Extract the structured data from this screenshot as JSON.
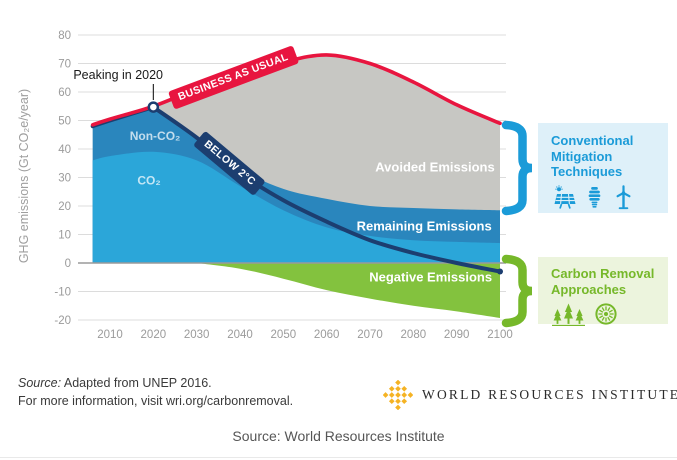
{
  "chart_data": {
    "type": "area",
    "title": "",
    "ylabel": "GHG emissions (Gt CO₂e/year)",
    "xlabel": "",
    "xlim": [
      2006,
      2100
    ],
    "ylim": [
      -20,
      80
    ],
    "x_ticks": [
      2010,
      2020,
      2030,
      2040,
      2050,
      2060,
      2070,
      2080,
      2090,
      2100
    ],
    "y_ticks": [
      80,
      70,
      60,
      50,
      40,
      30,
      20,
      10,
      0,
      -10,
      -20
    ],
    "grid": "horizontal",
    "legend_position": "right",
    "series": [
      {
        "name": "Business as Usual",
        "label": "BUSINESS AS USUAL",
        "type": "line",
        "color": "#e8153f",
        "points": [
          [
            2006,
            48.5
          ],
          [
            2010,
            50.5
          ],
          [
            2020,
            55
          ],
          [
            2030,
            61
          ],
          [
            2040,
            66
          ],
          [
            2050,
            70.5
          ],
          [
            2060,
            73
          ],
          [
            2070,
            70
          ],
          [
            2080,
            63.5
          ],
          [
            2090,
            55.5
          ],
          [
            2100,
            49
          ]
        ]
      },
      {
        "name": "Below 2°C (net emissions)",
        "label": "BELOW 2°C",
        "type": "line",
        "color": "#1c3e70",
        "segments": [
          [
            [
              2006,
              48
            ],
            [
              2010,
              50
            ],
            [
              2020,
              54.7
            ]
          ],
          [
            [
              2020,
              54.7
            ],
            [
              2030,
              44
            ],
            [
              2040,
              31.5
            ],
            [
              2050,
              22
            ],
            [
              2060,
              14.5
            ],
            [
              2070,
              8
            ],
            [
              2080,
              3.5
            ],
            [
              2090,
              0
            ],
            [
              2100,
              -3
            ]
          ]
        ]
      },
      {
        "name": "Avoided Emissions",
        "type": "area",
        "color": "#c7c7c3",
        "between": "Business as Usual and Remaining Emissions top"
      },
      {
        "name": "Remaining Emissions (Non-CO₂)",
        "type": "area",
        "color": "#2a86bd",
        "segments": [
          [
            [
              2006,
              48
            ],
            [
              2010,
              50
            ],
            [
              2020,
              54.7
            ]
          ],
          [
            [
              2020,
              54.7
            ],
            [
              2030,
              44.5
            ],
            [
              2040,
              33
            ],
            [
              2050,
              26
            ],
            [
              2060,
              22.5
            ],
            [
              2070,
              20
            ],
            [
              2080,
              19.3
            ],
            [
              2090,
              18.8
            ],
            [
              2100,
              18.5
            ]
          ]
        ]
      },
      {
        "name": "Remaining Emissions (CO₂)",
        "type": "area",
        "color": "#2ba6d9",
        "points": [
          [
            2006,
            36
          ],
          [
            2010,
            37.5
          ],
          [
            2020,
            39
          ],
          [
            2030,
            36
          ],
          [
            2040,
            27
          ],
          [
            2050,
            18.5
          ],
          [
            2060,
            12.5
          ],
          [
            2070,
            9.5
          ],
          [
            2080,
            8
          ],
          [
            2090,
            7.4
          ],
          [
            2100,
            7
          ]
        ]
      },
      {
        "name": "Negative Emissions",
        "type": "area",
        "color": "#83c23e",
        "points": [
          [
            2030,
            0
          ],
          [
            2040,
            -2
          ],
          [
            2050,
            -5.5
          ],
          [
            2060,
            -9.5
          ],
          [
            2070,
            -12.5
          ],
          [
            2080,
            -15
          ],
          [
            2090,
            -17
          ],
          [
            2100,
            -19.3
          ]
        ]
      }
    ],
    "area_labels": [
      {
        "text": "Non-CO₂",
        "year": 2020.4,
        "value": 44.5,
        "color": "rgba(255,255,255,0.72)",
        "size": 12
      },
      {
        "text": "CO₂",
        "year": 2019,
        "value": 29,
        "color": "rgba(255,255,255,0.72)",
        "size": 12
      },
      {
        "text": "Avoided Emissions",
        "year": 2085,
        "value": 33.5,
        "color": "#ffffff",
        "size": 13
      },
      {
        "text": "Remaining Emissions",
        "year": 2082.5,
        "value": 12.8,
        "color": "#ffffff",
        "size": 13
      },
      {
        "text": "Negative Emissions",
        "year": 2084,
        "value": -5,
        "color": "#ffffff",
        "size": 13
      }
    ],
    "annotation": {
      "text": "Peaking in 2020",
      "point": [
        2020,
        54.7
      ]
    }
  },
  "legend": {
    "conventional": {
      "title": "Conventional Mitigation Techniques",
      "color": "#1b9bd8",
      "bg": "#def0f9",
      "icons": [
        "solar-panel-icon",
        "cfl-bulb-icon",
        "wind-turbine-icon"
      ]
    },
    "carbon_removal": {
      "title": "Carbon Removal Approaches",
      "color": "#76b82a",
      "bg": "#ecf4dd",
      "icons": [
        "trees-icon",
        "direct-air-capture-fan-icon"
      ]
    }
  },
  "footer": {
    "source_prefix": "Source:",
    "source_rest": " Adapted from UNEP 2016.",
    "source_line2": "For more information, visit wri.org/carbonremoval.",
    "logo_text": "WORLD RESOURCES INSTITUTE",
    "logo_color": "#f5b324",
    "caption": "Source: World Resources Institute"
  }
}
